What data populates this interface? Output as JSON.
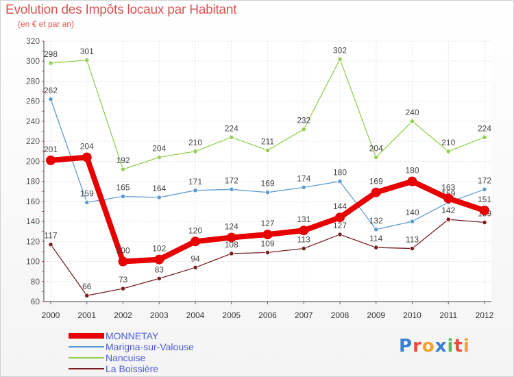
{
  "header": {
    "title": "Evolution des Impôts locaux par Habitant",
    "subtitle": "(en € et par an)"
  },
  "logo": {
    "text": "Proxiti"
  },
  "chart_data": {
    "type": "line",
    "title": "Evolution des Impôts locaux par Habitant",
    "subtitle": "(en € et par an)",
    "xlabel": "",
    "ylabel": "",
    "x": [
      "2000",
      "2001",
      "2002",
      "2003",
      "2004",
      "2005",
      "2006",
      "2007",
      "2008",
      "2009",
      "2010",
      "2011",
      "2012"
    ],
    "ylim": [
      60,
      320
    ],
    "yticks": [
      60,
      80,
      100,
      120,
      140,
      160,
      180,
      200,
      220,
      240,
      260,
      280,
      300,
      320
    ],
    "grid": true,
    "legend_position": "bottom-left",
    "series": [
      {
        "name": "MONNETAY",
        "color": "#e60000",
        "emphasis": true,
        "values": [
          201,
          204,
          100,
          102,
          120,
          124,
          127,
          131,
          144,
          169,
          180,
          163,
          151
        ]
      },
      {
        "name": "Marigna-sur-Valouse",
        "color": "#5b9bd5",
        "emphasis": false,
        "values": [
          262,
          159,
          165,
          164,
          171,
          172,
          169,
          174,
          180,
          132,
          140,
          159,
          172
        ]
      },
      {
        "name": "Nancuise",
        "color": "#92d050",
        "emphasis": false,
        "values": [
          298,
          301,
          192,
          204,
          210,
          224,
          211,
          232,
          302,
          204,
          240,
          210,
          224
        ]
      },
      {
        "name": "La Boissière",
        "color": "#7b1f1f",
        "emphasis": false,
        "values": [
          117,
          66,
          73,
          83,
          94,
          108,
          109,
          113,
          127,
          114,
          113,
          142,
          139
        ]
      }
    ]
  }
}
